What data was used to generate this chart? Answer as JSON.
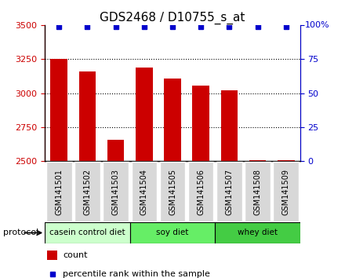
{
  "title": "GDS2468 / D10755_s_at",
  "samples": [
    "GSM141501",
    "GSM141502",
    "GSM141503",
    "GSM141504",
    "GSM141505",
    "GSM141506",
    "GSM141507",
    "GSM141508",
    "GSM141509"
  ],
  "counts": [
    3250,
    3160,
    2660,
    3185,
    3110,
    3055,
    3020,
    2505,
    2510
  ],
  "percentile_ranks": [
    99,
    99,
    99,
    99,
    99,
    99,
    99,
    99,
    99
  ],
  "ylim_left": [
    2500,
    3500
  ],
  "ylim_right": [
    0,
    100
  ],
  "yticks_left": [
    2500,
    2750,
    3000,
    3250,
    3500
  ],
  "yticks_right": [
    0,
    25,
    50,
    75,
    100
  ],
  "bar_color": "#cc0000",
  "dot_color": "#0000cc",
  "bar_width": 0.6,
  "groups": [
    {
      "label": "casein control diet",
      "indices": [
        0,
        1,
        2
      ],
      "color": "#ccffcc"
    },
    {
      "label": "soy diet",
      "indices": [
        3,
        4,
        5
      ],
      "color": "#66ee66"
    },
    {
      "label": "whey diet",
      "indices": [
        6,
        7,
        8
      ],
      "color": "#44cc44"
    }
  ],
  "protocol_label": "protocol",
  "legend_count_label": "count",
  "legend_percentile_label": "percentile rank within the sample",
  "bg_color": "#ffffff",
  "plot_bg_color": "#ffffff",
  "tick_label_color_left": "#cc0000",
  "tick_label_color_right": "#0000cc",
  "title_fontsize": 11,
  "axis_fontsize": 8,
  "tick_fontsize": 7,
  "legend_fontsize": 8,
  "sample_box_color": "#d8d8d8"
}
